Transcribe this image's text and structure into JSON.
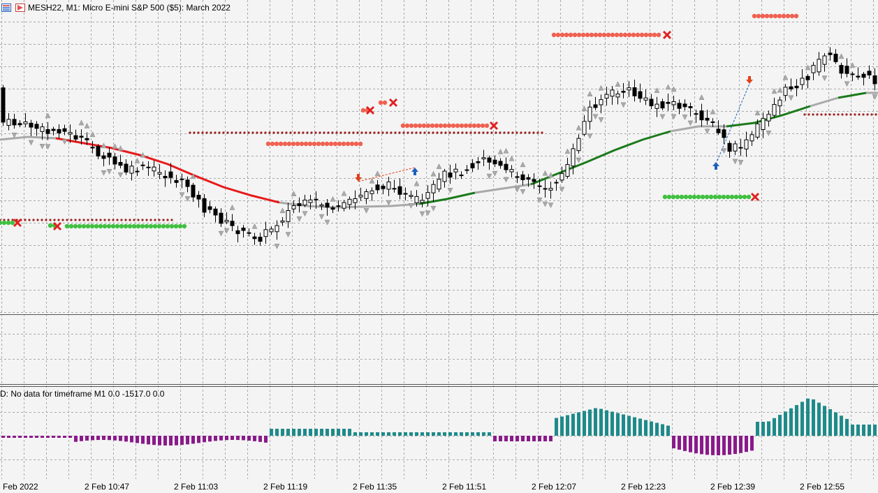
{
  "window": {
    "title": "MESH22, M1:  Micro E-mini S&P 500 ($5): March 2022"
  },
  "oscillator": {
    "label": "D: No data for timeframe M1 0.0 -1517.0 0.0"
  },
  "time_axis": {
    "labels": [
      "Feb 2022",
      "2 Feb 10:47",
      "2 Feb 11:03",
      "2 Feb 11:19",
      "2 Feb 11:35",
      "2 Feb 11:51",
      "2 Feb 12:07",
      "2 Feb 12:23",
      "2 Feb 12:39",
      "2 Feb 12:55"
    ]
  },
  "colors": {
    "background": "#f4f4f4",
    "grid": "#a8a8a8",
    "bull_candle": "#ffffff",
    "bear_candle": "#000000",
    "ma_down": "#e8191b",
    "ma_up": "#1a7a1a",
    "ma_flat": "#a9a9a9",
    "hist_positive": "#1f8a8a",
    "hist_negative": "#8a1a8a",
    "dots_red": "#f06050",
    "dots_green": "#40c040",
    "dots_darkred": "#a02020",
    "cross": "#e02020",
    "arrow_up": "#1f5fbf",
    "arrow_down": "#e0401a"
  },
  "icons": {
    "title_icon_1": "chart-list-icon",
    "title_icon_2": "chart-flag-icon"
  }
}
